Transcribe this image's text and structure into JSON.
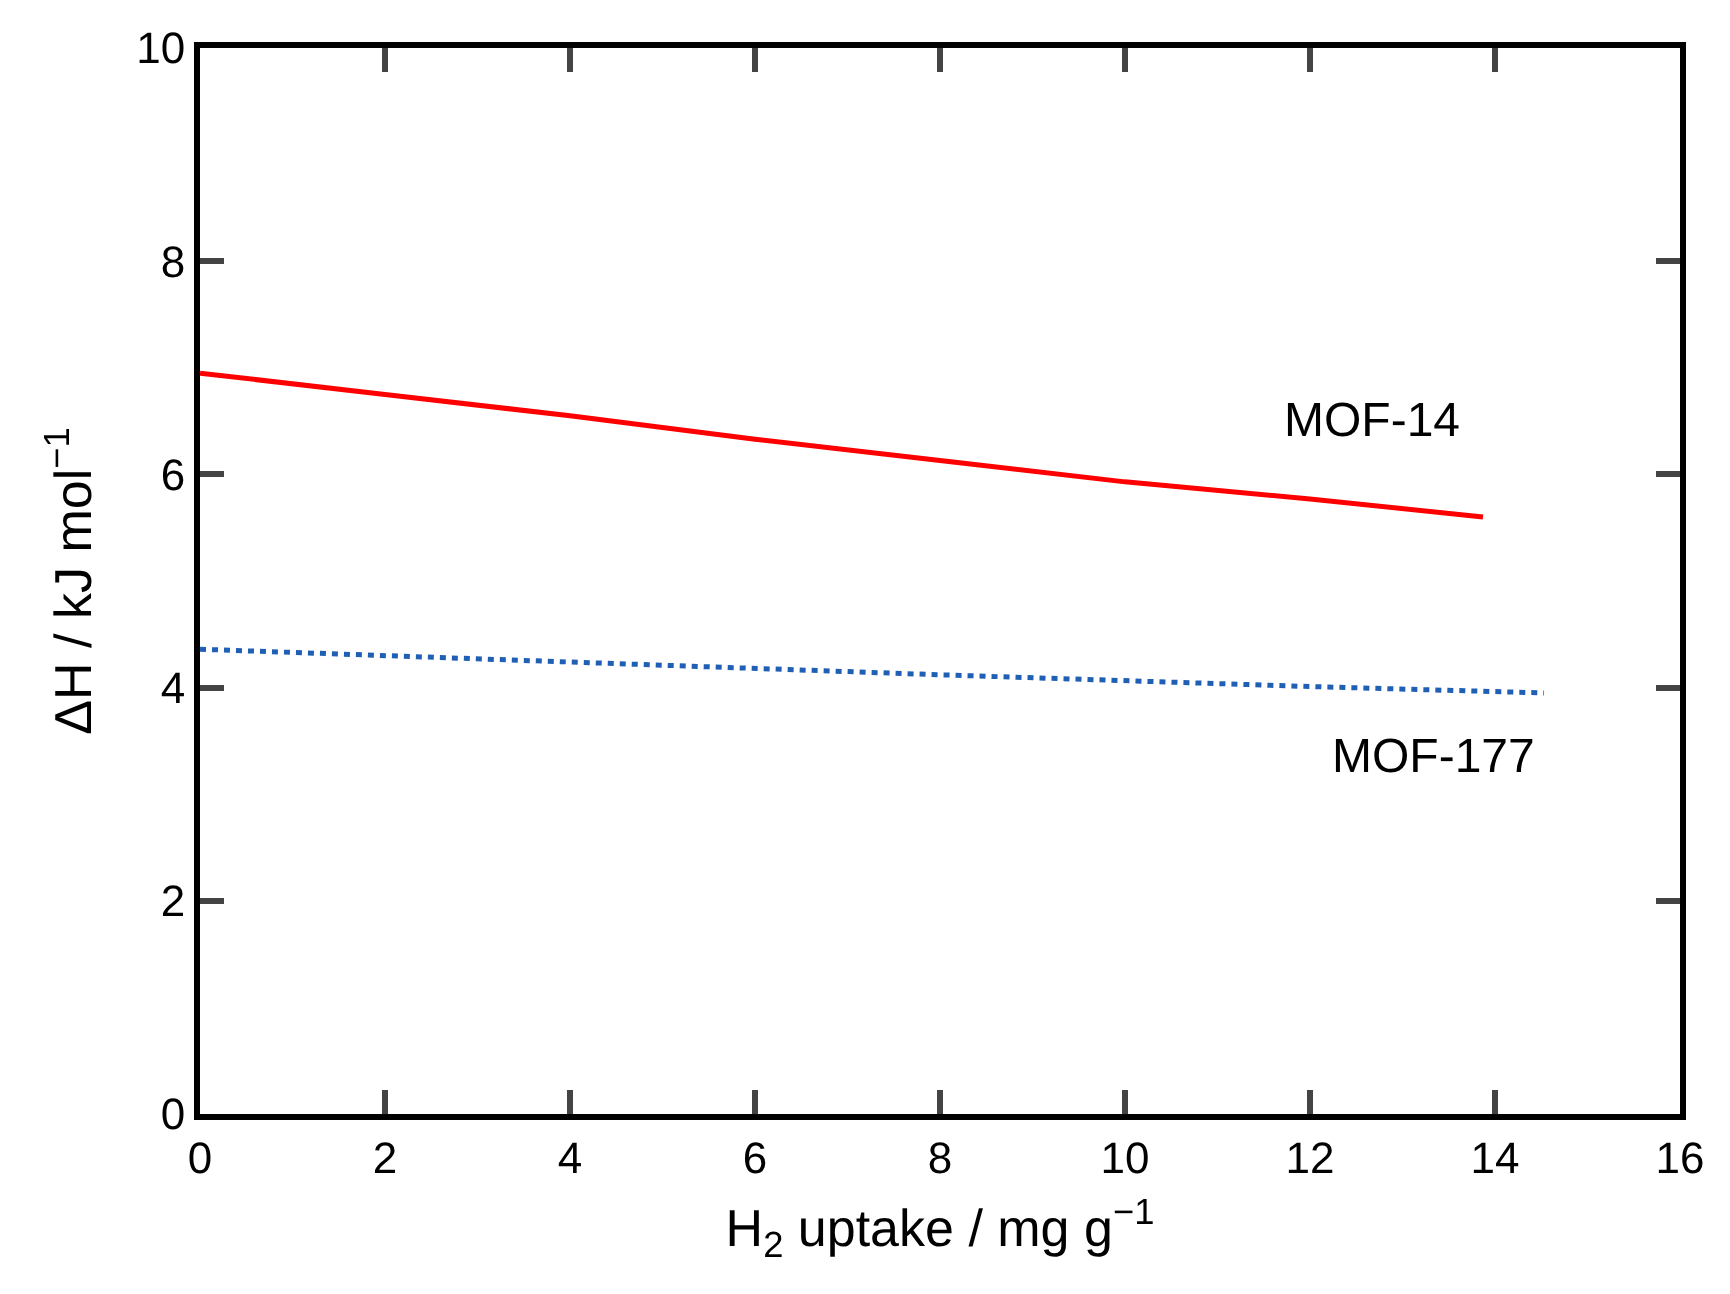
{
  "chart_data": {
    "type": "line",
    "xlabel": "H$_{2}$ uptake / mg g$^{−1}$",
    "ylabel": "ΔH / kJ mol$^{−1}$",
    "xlim": [
      0,
      16
    ],
    "xticks": [
      0,
      2,
      4,
      6,
      8,
      10,
      12,
      14,
      16
    ],
    "ylim": [
      0,
      10
    ],
    "yticks": [
      0,
      2,
      4,
      6,
      8,
      10
    ],
    "series": [
      {
        "name": "MOF-14",
        "color": "#ff0000",
        "line_style": "solid",
        "x": [
          0,
          2,
          4,
          6,
          8,
          10,
          12,
          13.87
        ],
        "values": [
          6.95,
          6.75,
          6.55,
          6.33,
          6.13,
          5.93,
          5.77,
          5.6
        ]
      },
      {
        "name": "MOF-177",
        "color": "#1f5fb4",
        "line_style": "dotted",
        "x": [
          0,
          4,
          8,
          12,
          14.53
        ],
        "values": [
          4.36,
          4.24,
          4.12,
          4.01,
          3.95
        ]
      }
    ]
  }
}
